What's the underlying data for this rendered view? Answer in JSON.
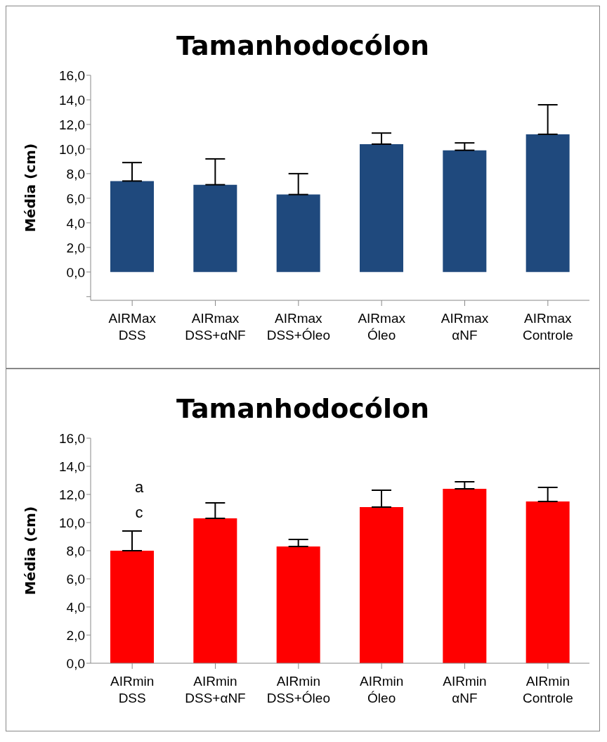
{
  "chart_data": [
    {
      "type": "bar",
      "title": "Tamanhodocólon",
      "ylabel": "Média (cm)",
      "categories": [
        "AIRMax DSS",
        "AIRmax DSS+αNF",
        "AIRmax DSS+Óleo",
        "AIRmax Óleo",
        "AIRmax αNF",
        "AIRmax Controle"
      ],
      "values": [
        7.4,
        7.1,
        6.3,
        10.4,
        9.9,
        11.2
      ],
      "color": "#1f497d",
      "errors": [
        [
          7.4,
          8.9
        ],
        [
          7.1,
          9.2
        ],
        [
          6.3,
          8.0
        ],
        [
          10.4,
          11.3
        ],
        [
          9.9,
          10.5
        ],
        [
          11.2,
          13.6
        ]
      ],
      "ylim": [
        -2.3,
        16
      ],
      "yticks": [
        {
          "value": -2,
          "label": null
        },
        {
          "value": 0,
          "label": "0,0"
        },
        {
          "value": 2,
          "label": "2,0"
        },
        {
          "value": 4,
          "label": "4,0"
        },
        {
          "value": 6,
          "label": "6,0"
        },
        {
          "value": 8,
          "label": "8,0"
        },
        {
          "value": 10,
          "label": "10,0"
        },
        {
          "value": 12,
          "label": "12,0"
        },
        {
          "value": 14,
          "label": "14,0"
        },
        {
          "value": 16,
          "label": "16,0"
        }
      ],
      "grid": false,
      "legend": false
    },
    {
      "type": "bar",
      "title": "Tamanhodocólon",
      "ylabel": "Média (cm)",
      "categories": [
        "AIRmin DSS",
        "AIRmin DSS+αNF",
        "AIRmin DSS+Óleo",
        "AIRmin Óleo",
        "AIRmin αNF",
        "AIRmin Controle"
      ],
      "values": [
        8.0,
        10.3,
        8.3,
        11.1,
        12.4,
        11.5
      ],
      "color": "#ff0000",
      "errors": [
        [
          8.0,
          9.4
        ],
        [
          10.3,
          11.4
        ],
        [
          8.3,
          8.8
        ],
        [
          11.1,
          12.3
        ],
        [
          12.4,
          12.9
        ],
        [
          11.5,
          12.5
        ]
      ],
      "ylim": [
        0,
        16
      ],
      "yticks": [
        {
          "value": 0,
          "label": "0,0"
        },
        {
          "value": 2,
          "label": "2,0"
        },
        {
          "value": 4,
          "label": "4,0"
        },
        {
          "value": 6,
          "label": "6,0"
        },
        {
          "value": 8,
          "label": "8,0"
        },
        {
          "value": 10,
          "label": "10,0"
        },
        {
          "value": 12,
          "label": "12,0"
        },
        {
          "value": 14,
          "label": "14,0"
        },
        {
          "value": 16,
          "label": "16,0"
        }
      ],
      "grid": false,
      "legend": false,
      "annotations": [
        "a",
        "c"
      ]
    }
  ]
}
